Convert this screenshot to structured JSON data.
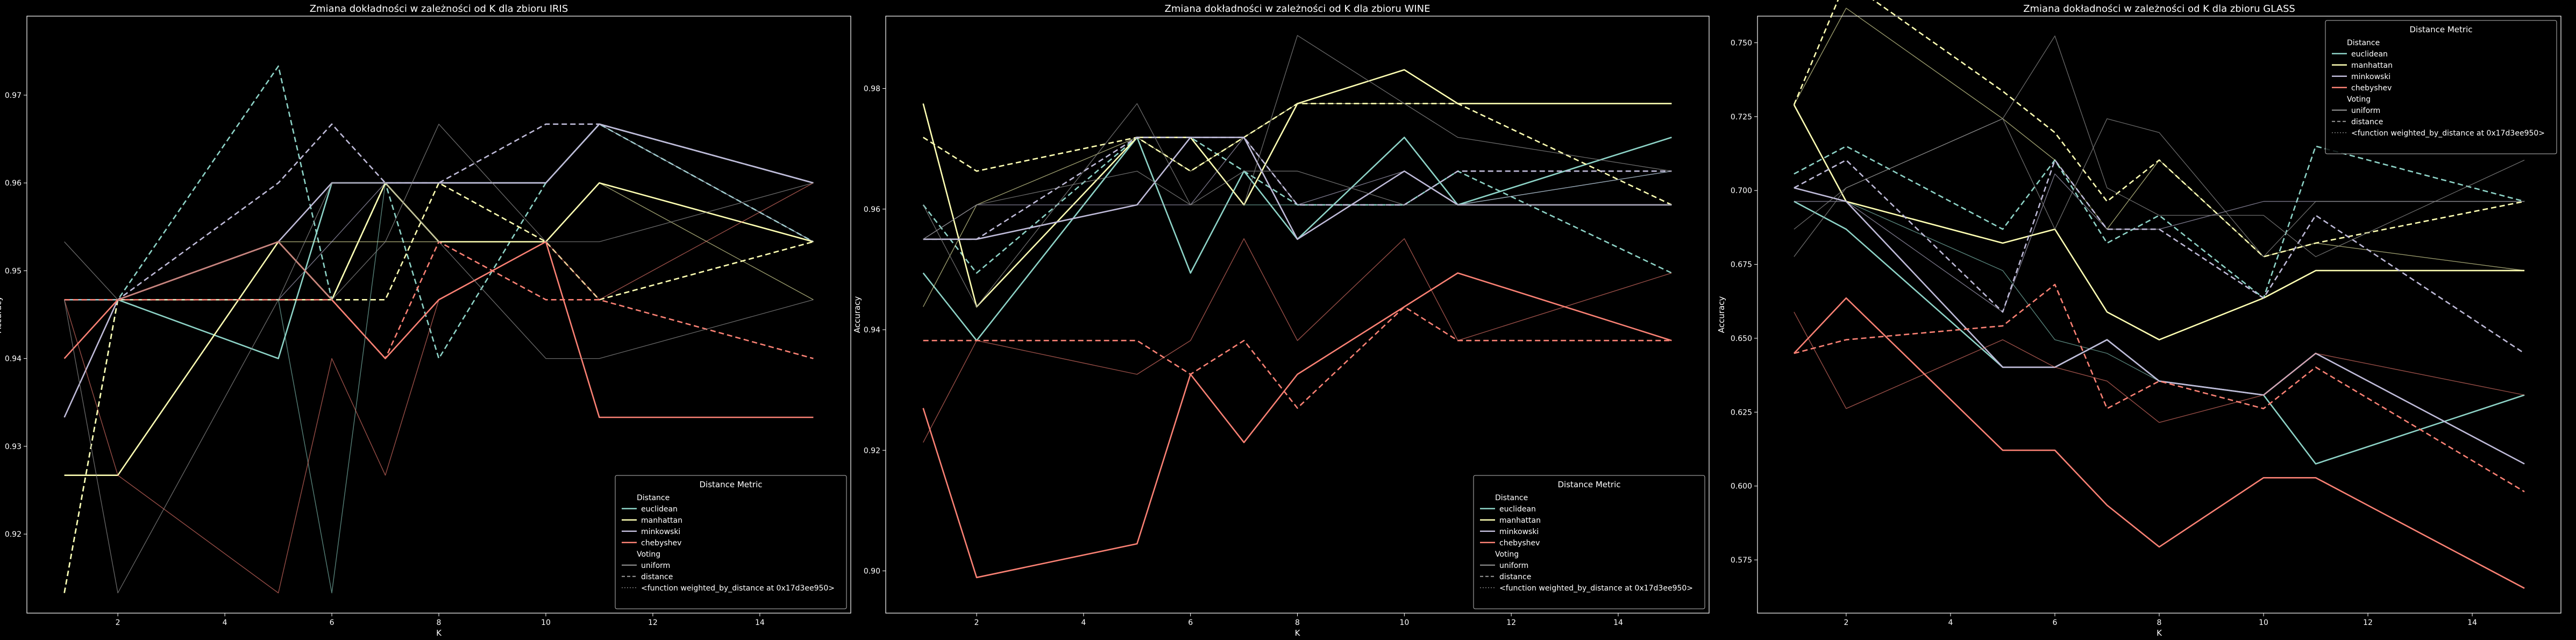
{
  "colors": {
    "background": "#000000",
    "axes": "#ffffff",
    "euclidean": "#8dd3c7",
    "manhattan": "#feffb3",
    "minkowski": "#bfbbd9",
    "chebyshev": "#fa8174",
    "legend_bg": "#000000"
  },
  "legend": {
    "title": "Distance Metric",
    "distance_header": "Distance",
    "metrics": [
      "euclidean",
      "manhattan",
      "minkowski",
      "chebyshev"
    ],
    "voting_header": "Voting",
    "voting": [
      "uniform",
      "distance",
      "<function weighted_by_distance at 0x17d3ee950>"
    ]
  },
  "chart_data": [
    {
      "type": "line",
      "title": "Zmiana dokładności w zależności od K dla zbioru IRIS",
      "xlabel": "K",
      "ylabel": "Accuracy",
      "xlim": [
        0.3,
        15.7
      ],
      "ylim": [
        0.911,
        0.979
      ],
      "xticks": [
        2,
        4,
        6,
        8,
        10,
        12,
        14
      ],
      "yticks": [
        0.92,
        0.93,
        0.94,
        0.95,
        0.96,
        0.97
      ],
      "ytick_labels": [
        "0.92",
        "0.93",
        "0.94",
        "0.95",
        "0.96",
        "0.97"
      ],
      "legend_loc": "lower right",
      "x": [
        1,
        2,
        5,
        6,
        7,
        8,
        10,
        11,
        15
      ],
      "series": [
        {
          "metric": "euclidean",
          "voting": "uniform",
          "values": [
            0.9467,
            0.9467,
            0.94,
            0.96,
            0.96,
            0.96,
            0.96,
            0.9667,
            0.96
          ]
        },
        {
          "metric": "euclidean",
          "voting": "distance",
          "values": [
            0.9133,
            0.9467,
            0.9733,
            0.9467,
            0.96,
            0.94,
            0.96,
            0.9667,
            0.9533
          ]
        },
        {
          "metric": "euclidean",
          "voting": "weighted",
          "values": [
            0.9467,
            0.9467,
            0.9467,
            0.9133,
            0.96,
            0.96,
            0.96,
            0.9667,
            0.9533
          ]
        },
        {
          "metric": "manhattan",
          "voting": "uniform",
          "values": [
            0.9267,
            0.9267,
            0.9533,
            0.9467,
            0.96,
            0.9533,
            0.9533,
            0.96,
            0.9533
          ]
        },
        {
          "metric": "manhattan",
          "voting": "distance",
          "values": [
            0.9133,
            0.9467,
            0.9467,
            0.9467,
            0.9467,
            0.96,
            0.9533,
            0.9467,
            0.9533
          ]
        },
        {
          "metric": "manhattan",
          "voting": "weighted",
          "values": [
            0.9267,
            0.9267,
            0.9533,
            0.9533,
            0.9533,
            0.9533,
            0.9533,
            0.96,
            0.9467
          ]
        },
        {
          "metric": "minkowski",
          "voting": "uniform",
          "values": [
            0.9333,
            0.9467,
            0.9533,
            0.96,
            0.96,
            0.96,
            0.96,
            0.9667,
            0.96
          ]
        },
        {
          "metric": "minkowski",
          "voting": "distance",
          "values": [
            0.9467,
            0.9467,
            0.96,
            0.9667,
            0.96,
            0.96,
            0.9667,
            0.9667,
            0.96
          ]
        },
        {
          "metric": "minkowski",
          "voting": "weighted",
          "values": [
            0.9467,
            0.9467,
            0.9467,
            0.9533,
            0.96,
            0.96,
            0.96,
            0.9667,
            0.9533
          ]
        },
        {
          "metric": "chebyshev",
          "voting": "uniform",
          "values": [
            0.94,
            0.9467,
            0.9533,
            0.9467,
            0.94,
            0.9467,
            0.9533,
            0.9333,
            0.9333
          ]
        },
        {
          "metric": "chebyshev",
          "voting": "distance",
          "values": [
            0.9467,
            0.9467,
            0.9467,
            0.9467,
            0.94,
            0.9533,
            0.9467,
            0.9467,
            0.94
          ]
        },
        {
          "metric": "chebyshev",
          "voting": "weighted",
          "values": [
            0.9467,
            0.9267,
            0.9133,
            0.94,
            0.9267,
            0.9467,
            0.9533,
            0.9467,
            0.96
          ]
        },
        {
          "metric": "gray",
          "voting": "uniform",
          "values": [
            0.9533,
            0.9467,
            0.9533,
            0.9467,
            0.9533,
            0.9667,
            0.9533,
            0.9533,
            0.96
          ]
        },
        {
          "metric": "gray",
          "voting": "weighted",
          "values": [
            0.9467,
            0.9133,
            0.9467,
            0.96,
            0.96,
            0.9533,
            0.94,
            0.94,
            0.9467
          ]
        }
      ]
    },
    {
      "type": "line",
      "title": "Zmiana dokładności w zależności od K dla zbioru WINE",
      "xlabel": "K",
      "ylabel": "Accuracy",
      "xlim": [
        0.3,
        15.7
      ],
      "ylim": [
        0.893,
        0.992
      ],
      "xticks": [
        2,
        4,
        6,
        8,
        10,
        12,
        14
      ],
      "yticks": [
        0.9,
        0.92,
        0.94,
        0.96,
        0.98
      ],
      "ytick_labels": [
        "0.90",
        "0.92",
        "0.94",
        "0.96",
        "0.98"
      ],
      "legend_loc": "lower right",
      "x": [
        1,
        2,
        5,
        6,
        7,
        8,
        10,
        11,
        15
      ],
      "series": [
        {
          "metric": "euclidean",
          "voting": "uniform",
          "values": [
            0.9494,
            0.9382,
            0.9719,
            0.9494,
            0.9663,
            0.955,
            0.9719,
            0.9607,
            0.9719
          ]
        },
        {
          "metric": "euclidean",
          "voting": "distance",
          "values": [
            0.9607,
            0.9494,
            0.9719,
            0.9719,
            0.9663,
            0.9607,
            0.9607,
            0.9663,
            0.9494
          ]
        },
        {
          "metric": "euclidean",
          "voting": "weighted",
          "values": [
            0.955,
            0.955,
            0.9607,
            0.9719,
            0.9607,
            0.9607,
            0.9607,
            0.9607,
            0.9663
          ]
        },
        {
          "metric": "manhattan",
          "voting": "uniform",
          "values": [
            0.9775,
            0.9438,
            0.9719,
            0.9719,
            0.9607,
            0.9775,
            0.9831,
            0.9775,
            0.9775
          ]
        },
        {
          "metric": "manhattan",
          "voting": "distance",
          "values": [
            0.9719,
            0.9663,
            0.9719,
            0.9663,
            0.9719,
            0.9775,
            0.9775,
            0.9775,
            0.9607
          ]
        },
        {
          "metric": "manhattan",
          "voting": "weighted",
          "values": [
            0.9438,
            0.9607,
            0.9719,
            0.9663,
            0.9719,
            0.9775,
            0.9775,
            0.9775,
            0.9775
          ]
        },
        {
          "metric": "minkowski",
          "voting": "uniform",
          "values": [
            0.955,
            0.955,
            0.9607,
            0.9719,
            0.9719,
            0.955,
            0.9663,
            0.9607,
            0.9607
          ]
        },
        {
          "metric": "minkowski",
          "voting": "distance",
          "values": [
            0.955,
            0.955,
            0.9719,
            0.9719,
            0.9719,
            0.9607,
            0.9607,
            0.9663,
            0.9663
          ]
        },
        {
          "metric": "minkowski",
          "voting": "weighted",
          "values": [
            0.955,
            0.9607,
            0.9607,
            0.9607,
            0.9719,
            0.9607,
            0.9663,
            0.9607,
            0.9663
          ]
        },
        {
          "metric": "chebyshev",
          "voting": "uniform",
          "values": [
            0.927,
            0.8989,
            0.9045,
            0.9326,
            0.9213,
            0.9326,
            0.9438,
            0.9494,
            0.9382
          ]
        },
        {
          "metric": "chebyshev",
          "voting": "distance",
          "values": [
            0.9382,
            0.9382,
            0.9382,
            0.9326,
            0.9382,
            0.927,
            0.9438,
            0.9382,
            0.9382
          ]
        },
        {
          "metric": "chebyshev",
          "voting": "weighted",
          "values": [
            0.9213,
            0.9382,
            0.9326,
            0.9382,
            0.9551,
            0.9382,
            0.9551,
            0.9382,
            0.9494
          ]
        },
        {
          "metric": "gray",
          "voting": "uniform",
          "values": [
            0.9607,
            0.9438,
            0.9775,
            0.9607,
            0.9607,
            0.9888,
            0.9775,
            0.9719,
            0.9663
          ]
        },
        {
          "metric": "gray",
          "voting": "weighted",
          "values": [
            0.955,
            0.9607,
            0.9663,
            0.9607,
            0.9663,
            0.9663,
            0.9607,
            0.9607,
            0.9607
          ]
        }
      ]
    },
    {
      "type": "line",
      "title": "Zmiana dokładności w zależności od K dla zbioru GLASS",
      "xlabel": "K",
      "ylabel": "Accuracy",
      "xlim": [
        0.3,
        15.7
      ],
      "ylim": [
        0.557,
        0.759
      ],
      "xticks": [
        2,
        4,
        6,
        8,
        10,
        12,
        14
      ],
      "yticks": [
        0.575,
        0.6,
        0.625,
        0.65,
        0.675,
        0.7,
        0.725,
        0.75
      ],
      "ytick_labels": [
        "0.575",
        "0.600",
        "0.625",
        "0.650",
        "0.675",
        "0.700",
        "0.725",
        "0.750"
      ],
      "legend_loc": "upper right",
      "x": [
        1,
        2,
        5,
        6,
        7,
        8,
        10,
        11,
        15
      ],
      "series": [
        {
          "metric": "euclidean",
          "voting": "uniform",
          "values": [
            0.6963,
            0.6869,
            0.6402,
            0.6402,
            0.6495,
            0.6355,
            0.6308,
            0.6075,
            0.6308
          ]
        },
        {
          "metric": "euclidean",
          "voting": "distance",
          "values": [
            0.7056,
            0.715,
            0.6869,
            0.7103,
            0.6822,
            0.6916,
            0.6636,
            0.715,
            0.6963
          ]
        },
        {
          "metric": "euclidean",
          "voting": "weighted",
          "values": [
            0.7009,
            0.6963,
            0.6729,
            0.6495,
            0.6449,
            0.6355,
            0.6308,
            0.6449,
            0.6075
          ]
        },
        {
          "metric": "manhattan",
          "voting": "uniform",
          "values": [
            0.729,
            0.6963,
            0.6822,
            0.6869,
            0.6589,
            0.6495,
            0.6636,
            0.6729,
            0.6729
          ]
        },
        {
          "metric": "manhattan",
          "voting": "distance",
          "values": [
            0.729,
            0.771,
            0.7336,
            0.7196,
            0.6963,
            0.7103,
            0.6776,
            0.6822,
            0.6963
          ]
        },
        {
          "metric": "manhattan",
          "voting": "weighted",
          "values": [
            0.729,
            0.7617,
            0.7243,
            0.7103,
            0.6869,
            0.7103,
            0.6776,
            0.6822,
            0.6729
          ]
        },
        {
          "metric": "minkowski",
          "voting": "uniform",
          "values": [
            0.7009,
            0.6963,
            0.6402,
            0.6402,
            0.6495,
            0.6355,
            0.6308,
            0.6449,
            0.6075
          ]
        },
        {
          "metric": "minkowski",
          "voting": "distance",
          "values": [
            0.7009,
            0.7103,
            0.6589,
            0.7103,
            0.6869,
            0.6869,
            0.6636,
            0.6916,
            0.6449
          ]
        },
        {
          "metric": "minkowski",
          "voting": "weighted",
          "values": [
            0.6963,
            0.6963,
            0.6589,
            0.7056,
            0.6869,
            0.6869,
            0.6963,
            0.6963,
            0.6963
          ]
        },
        {
          "metric": "chebyshev",
          "voting": "uniform",
          "values": [
            0.6449,
            0.6636,
            0.6121,
            0.6121,
            0.5935,
            0.5794,
            0.6028,
            0.6028,
            0.5654
          ]
        },
        {
          "metric": "chebyshev",
          "voting": "distance",
          "values": [
            0.6449,
            0.6495,
            0.6542,
            0.6682,
            0.6262,
            0.6355,
            0.6262,
            0.6402,
            0.5981
          ]
        },
        {
          "metric": "chebyshev",
          "voting": "weighted",
          "values": [
            0.6589,
            0.6262,
            0.6495,
            0.6402,
            0.6355,
            0.6215,
            0.6308,
            0.6449,
            0.6308
          ]
        },
        {
          "metric": "gray",
          "voting": "uniform",
          "values": [
            0.6776,
            0.7009,
            0.7243,
            0.6869,
            0.7243,
            0.7196,
            0.6776,
            0.6963,
            0.6963
          ]
        },
        {
          "metric": "gray",
          "voting": "weighted",
          "values": [
            0.6869,
            0.7009,
            0.7243,
            0.7523,
            0.7009,
            0.6916,
            0.6916,
            0.6776,
            0.7103
          ]
        }
      ]
    }
  ]
}
